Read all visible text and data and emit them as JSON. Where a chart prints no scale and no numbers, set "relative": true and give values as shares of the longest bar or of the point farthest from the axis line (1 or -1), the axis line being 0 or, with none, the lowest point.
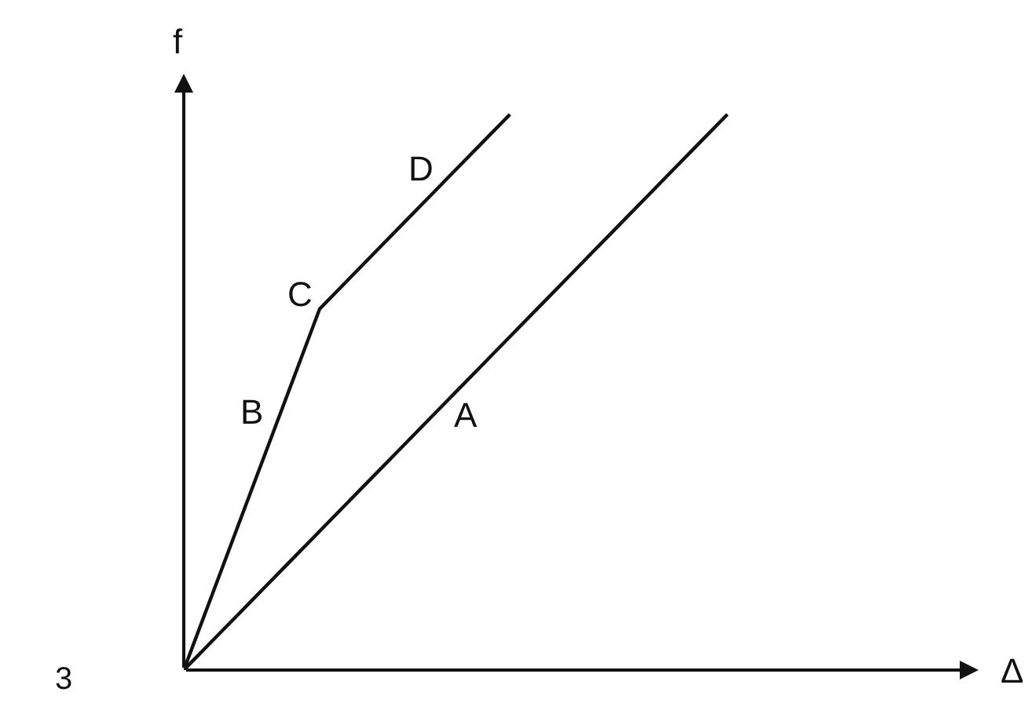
{
  "chart_data": {
    "type": "line",
    "relative": true,
    "ylabel": "f",
    "categories": [
      null,
      null,
      null,
      null,
      null,
      null,
      null,
      null,
      null,
      null,
      null,
      null,
      null,
      null,
      null,
      null,
      null,
      null,
      null,
      null,
      null
    ],
    "series": [
      {
        "name": "A",
        "color": "#111111",
        "values": [
          0,
          0.05,
          0.1,
          0.15,
          0.2,
          0.25,
          0.3,
          0.35,
          0.4,
          0.45,
          0.5,
          0.55,
          0.6,
          0.65,
          0.7,
          0.75,
          0.8,
          0.85,
          0.9,
          0.95,
          1
        ]
      },
      {
        "color": "#111111",
        "values": [
          0,
          0.13,
          0.26,
          0.39,
          0.52,
          0.65,
          0.7,
          0.75,
          0.8,
          0.85,
          0.9,
          0.95,
          1,
          null,
          null,
          null,
          null,
          null,
          null,
          null,
          null
        ]
      }
    ],
    "annotations": [
      "B",
      "C",
      "D",
      "Δ",
      "3"
    ],
    "line_style": "solid"
  }
}
